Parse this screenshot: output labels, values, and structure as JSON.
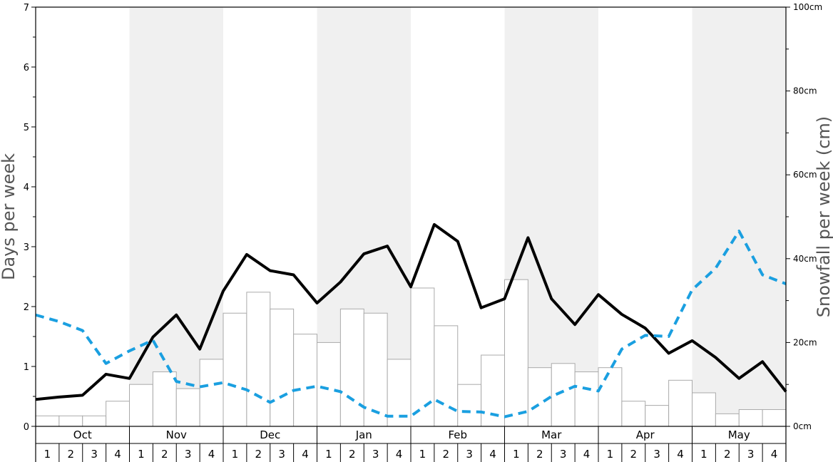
{
  "chart_data": {
    "type": "bar+line",
    "y_left": {
      "label": "Days per week",
      "range": [
        0,
        7
      ],
      "ticks": [
        "0",
        "1",
        "2",
        "3",
        "4",
        "5",
        "6",
        "7"
      ]
    },
    "y_right": {
      "label": "Snowfall per week (cm)",
      "range": [
        0,
        100
      ],
      "ticks": [
        "0cm",
        "20cm",
        "40cm",
        "60cm",
        "80cm",
        "100cm"
      ]
    },
    "months": [
      "Oct",
      "Nov",
      "Dec",
      "Jan",
      "Feb",
      "Mar",
      "Apr",
      "May"
    ],
    "weeks": [
      "1",
      "2",
      "3",
      "4"
    ],
    "shaded_months": [
      1,
      3,
      5,
      7
    ],
    "snowfall_cm": [
      2.5,
      2.5,
      2.5,
      6,
      10,
      13,
      9,
      16,
      27,
      32,
      28,
      22,
      20,
      28,
      27,
      16,
      33,
      24,
      10,
      17,
      35,
      14,
      15,
      13,
      14,
      6,
      5,
      11,
      8,
      3,
      4,
      4
    ],
    "series": [
      {
        "values": [
          0.45,
          0.49,
          0.52,
          0.87,
          0.8,
          1.49,
          1.86,
          1.29,
          2.26,
          2.87,
          2.6,
          2.53,
          2.06,
          2.41,
          2.88,
          3.01,
          2.33,
          3.37,
          3.09,
          1.98,
          2.13,
          3.15,
          2.13,
          1.7,
          2.2,
          1.87,
          1.64,
          1.22,
          1.43,
          1.15,
          0.8,
          1.08,
          0.58
        ],
        "color": "#000000",
        "style": "solid"
      },
      {
        "values": [
          1.86,
          1.75,
          1.6,
          1.05,
          1.26,
          1.44,
          0.75,
          0.66,
          0.73,
          0.61,
          0.4,
          0.6,
          0.67,
          0.58,
          0.32,
          0.17,
          0.17,
          0.45,
          0.25,
          0.24,
          0.16,
          0.25,
          0.5,
          0.67,
          0.59,
          1.29,
          1.52,
          1.5,
          2.28,
          2.64,
          3.26,
          2.53,
          2.38
        ],
        "color": "#1a9fe0",
        "style": "dashed"
      }
    ]
  }
}
